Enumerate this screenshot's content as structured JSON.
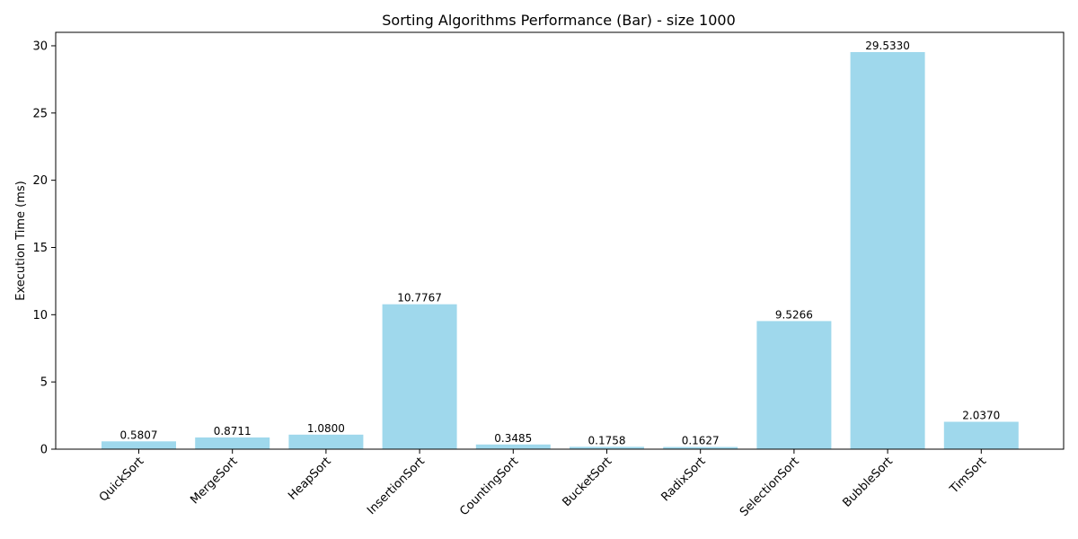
{
  "chart_data": {
    "type": "bar",
    "title": "Sorting Algorithms Performance (Bar) - size 1000",
    "xlabel": "",
    "ylabel": "Execution Time (ms)",
    "categories": [
      "QuickSort",
      "MergeSort",
      "HeapSort",
      "InsertionSort",
      "CountingSort",
      "BucketSort",
      "RadixSort",
      "SelectionSort",
      "BubbleSort",
      "TimSort"
    ],
    "values": [
      0.5807,
      0.8711,
      1.08,
      10.7767,
      0.3485,
      0.1758,
      0.1627,
      9.5266,
      29.533,
      2.037
    ],
    "value_labels": [
      "0.5807",
      "0.8711",
      "1.0800",
      "10.7767",
      "0.3485",
      "0.1758",
      "0.1627",
      "9.5266",
      "29.5330",
      "2.0370"
    ],
    "ylim": [
      0,
      31
    ],
    "yticks": [
      0,
      5,
      10,
      15,
      20,
      25,
      30
    ],
    "grid": false,
    "legend": "none",
    "bar_color": "#9fd8ec"
  }
}
